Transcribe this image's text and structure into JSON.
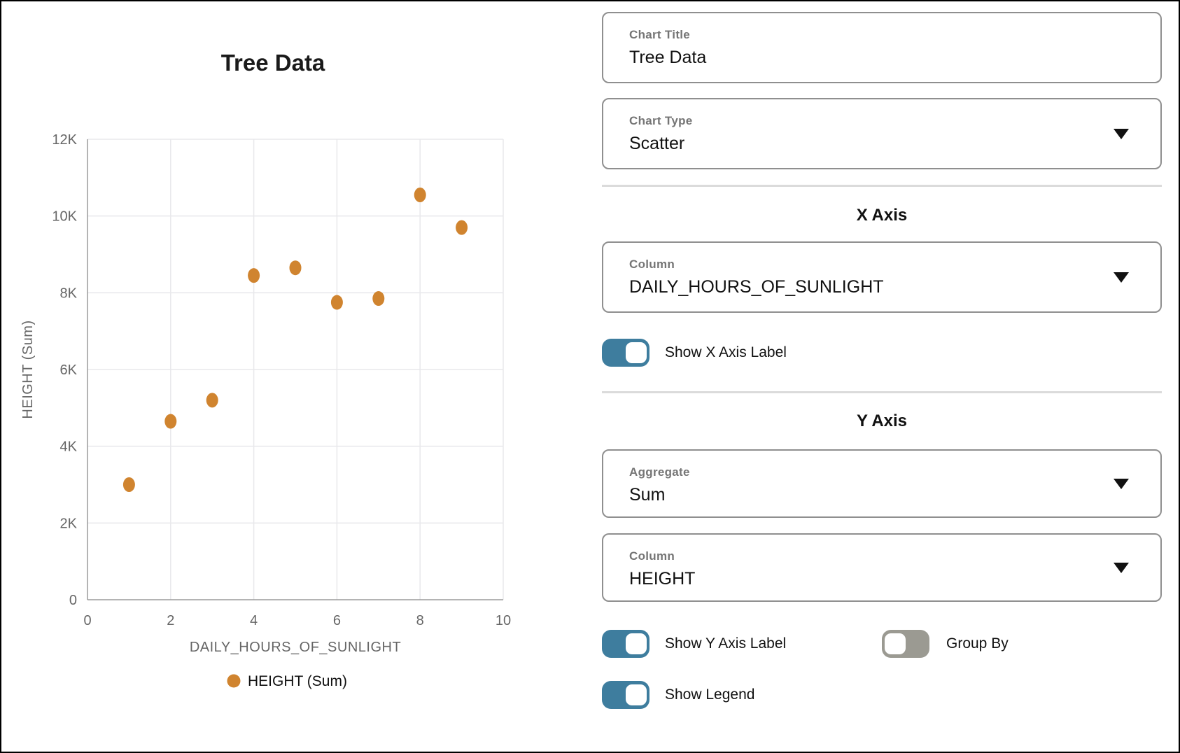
{
  "chart": {
    "title": "Tree Data",
    "point_color": "#D0842F"
  },
  "chart_data": {
    "type": "scatter",
    "title": "Tree Data",
    "xlabel": "DAILY_HOURS_OF_SUNLIGHT",
    "ylabel": "HEIGHT (Sum)",
    "series": [
      {
        "name": "HEIGHT (Sum)",
        "color": "#D0842F",
        "points": [
          [
            1,
            3000
          ],
          [
            2,
            4650
          ],
          [
            3,
            5200
          ],
          [
            4,
            8450
          ],
          [
            5,
            8650
          ],
          [
            6,
            7750
          ],
          [
            7,
            7850
          ],
          [
            8,
            10550
          ],
          [
            9,
            9700
          ]
        ]
      }
    ],
    "xlim": [
      0,
      10
    ],
    "ylim": [
      0,
      12000
    ],
    "x_ticks": [
      0,
      2,
      4,
      6,
      8,
      10
    ],
    "x_tick_labels": [
      "0",
      "2",
      "4",
      "6",
      "8",
      "10"
    ],
    "y_ticks": [
      0,
      2000,
      4000,
      6000,
      8000,
      10000,
      12000
    ],
    "y_tick_labels": [
      "0",
      "2K",
      "4K",
      "6K",
      "8K",
      "10K",
      "12K"
    ],
    "grid": true,
    "legend_position": "bottom"
  },
  "panel": {
    "chart_title_field": {
      "label": "Chart Title",
      "value": "Tree Data"
    },
    "chart_type_field": {
      "label": "Chart Type",
      "value": "Scatter"
    },
    "x_axis_section": {
      "heading": "X Axis",
      "column_field": {
        "label": "Column",
        "value": "DAILY_HOURS_OF_SUNLIGHT"
      },
      "show_label_toggle": {
        "label": "Show X Axis Label",
        "state": "on"
      }
    },
    "y_axis_section": {
      "heading": "Y Axis",
      "aggregate_field": {
        "label": "Aggregate",
        "value": "Sum"
      },
      "column_field": {
        "label": "Column",
        "value": "HEIGHT"
      },
      "show_label_toggle": {
        "label": "Show Y Axis Label",
        "state": "on"
      },
      "group_by_toggle": {
        "label": "Group By",
        "state": "off"
      },
      "show_legend_toggle": {
        "label": "Show Legend",
        "state": "on"
      }
    },
    "colors": {
      "toggle_on": "#3E7D9E",
      "toggle_off": "#9B9A92"
    }
  }
}
